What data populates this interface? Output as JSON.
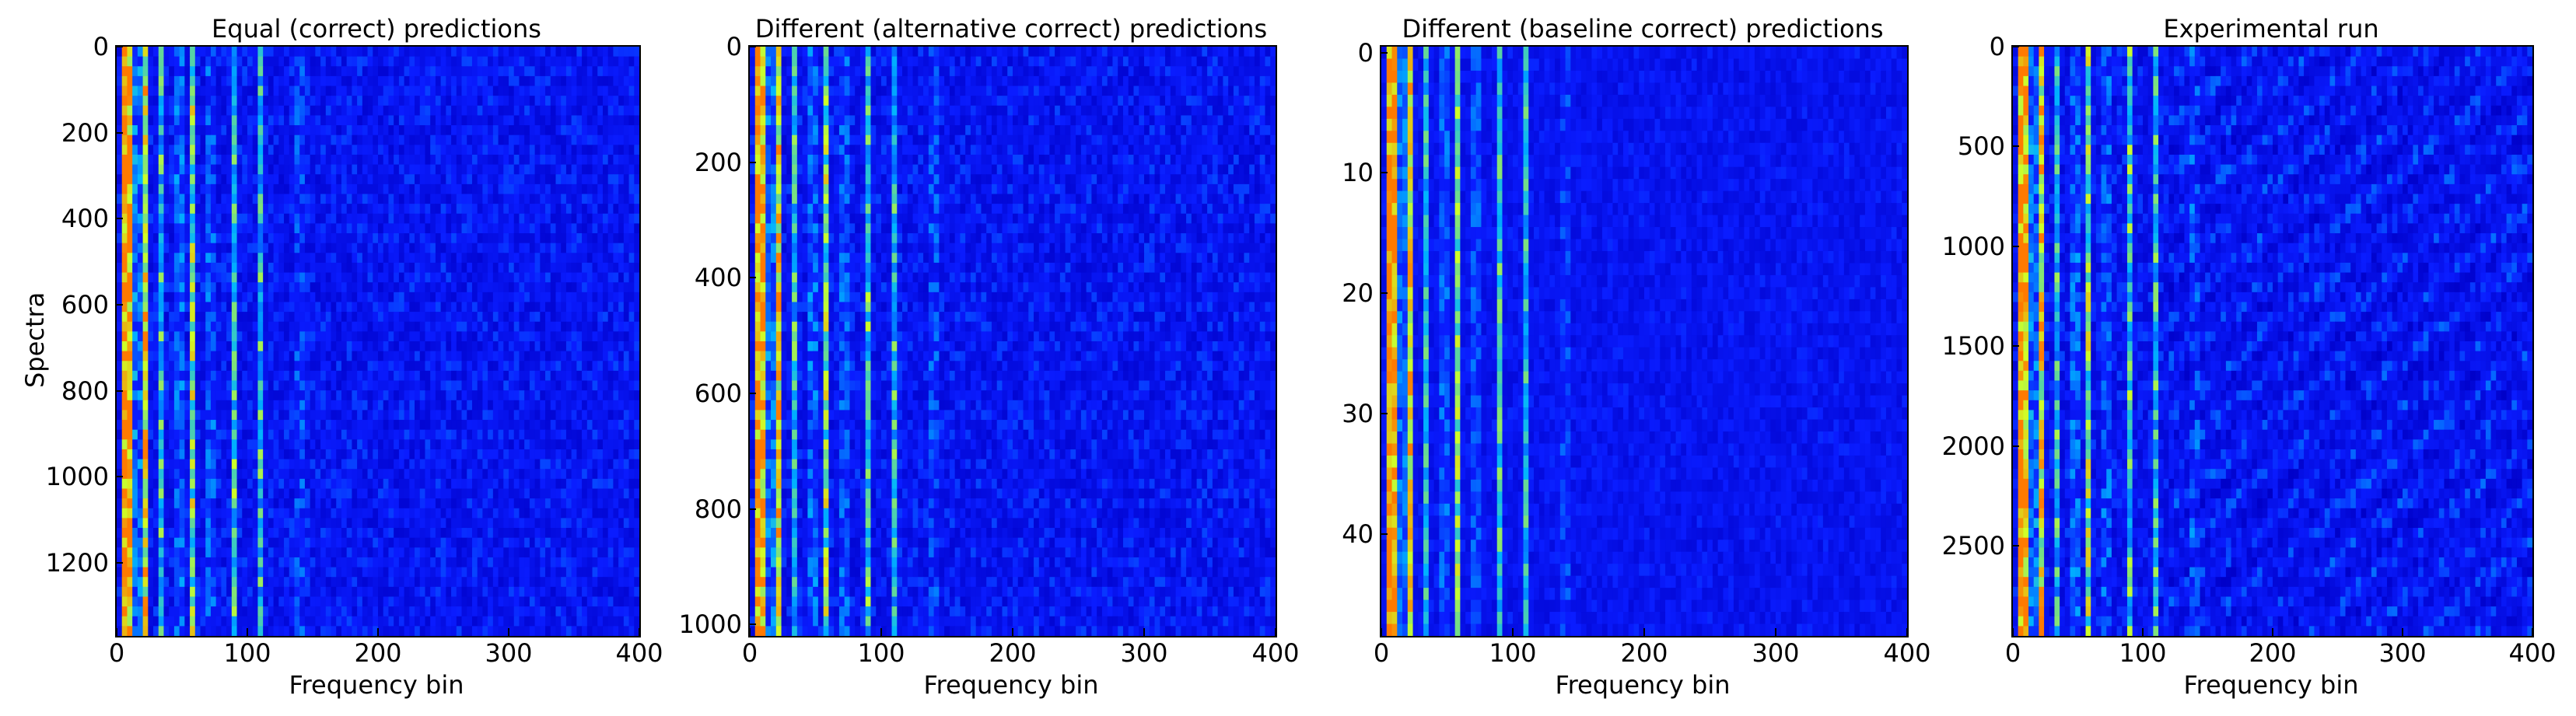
{
  "colors": {
    "background": "#0a1cff",
    "low": "#0000c8",
    "mid": "#00b4ff",
    "high": "#cfff28",
    "peak": "#ff7a00"
  },
  "chart_data": [
    {
      "type": "heatmap",
      "title": "Equal (correct) predictions",
      "xlabel": "Frequency bin",
      "ylabel": "Spectra",
      "xlim": [
        0,
        400
      ],
      "ylim": [
        0,
        1370
      ],
      "xticks": [
        "0",
        "100",
        "200",
        "300",
        "400"
      ],
      "yticks": [
        "0",
        "200",
        "400",
        "600",
        "800",
        "1000",
        "1200"
      ],
      "ytick_values": [
        0,
        200,
        400,
        600,
        800,
        1000,
        1200
      ],
      "colormap": "jet"
    },
    {
      "type": "heatmap",
      "title": "Different (alternative correct) predictions",
      "xlabel": "Frequency bin",
      "ylabel": "",
      "xlim": [
        0,
        400
      ],
      "ylim": [
        0,
        1020
      ],
      "xticks": [
        "0",
        "100",
        "200",
        "300",
        "400"
      ],
      "yticks": [
        "0",
        "200",
        "400",
        "600",
        "800",
        "1000"
      ],
      "ytick_values": [
        0,
        200,
        400,
        600,
        800,
        1000
      ],
      "colormap": "jet"
    },
    {
      "type": "heatmap",
      "title": "Different (baseline correct) predictions",
      "xlabel": "Frequency bin",
      "ylabel": "",
      "xlim": [
        0,
        400
      ],
      "ylim": [
        -0.5,
        48.5
      ],
      "xticks": [
        "0",
        "100",
        "200",
        "300",
        "400"
      ],
      "yticks": [
        "0",
        "10",
        "20",
        "30",
        "40"
      ],
      "ytick_values": [
        0,
        10,
        20,
        30,
        40
      ],
      "colormap": "jet"
    },
    {
      "type": "heatmap",
      "title": "Experimental run",
      "xlabel": "Frequency bin",
      "ylabel": "",
      "xlim": [
        0,
        400
      ],
      "ylim": [
        0,
        2950
      ],
      "xticks": [
        "0",
        "100",
        "200",
        "300",
        "400"
      ],
      "yticks": [
        "0",
        "500",
        "1000",
        "1500",
        "2000",
        "2500"
      ],
      "ytick_values": [
        0,
        500,
        1000,
        1500,
        2000,
        2500
      ],
      "colormap": "jet"
    }
  ]
}
